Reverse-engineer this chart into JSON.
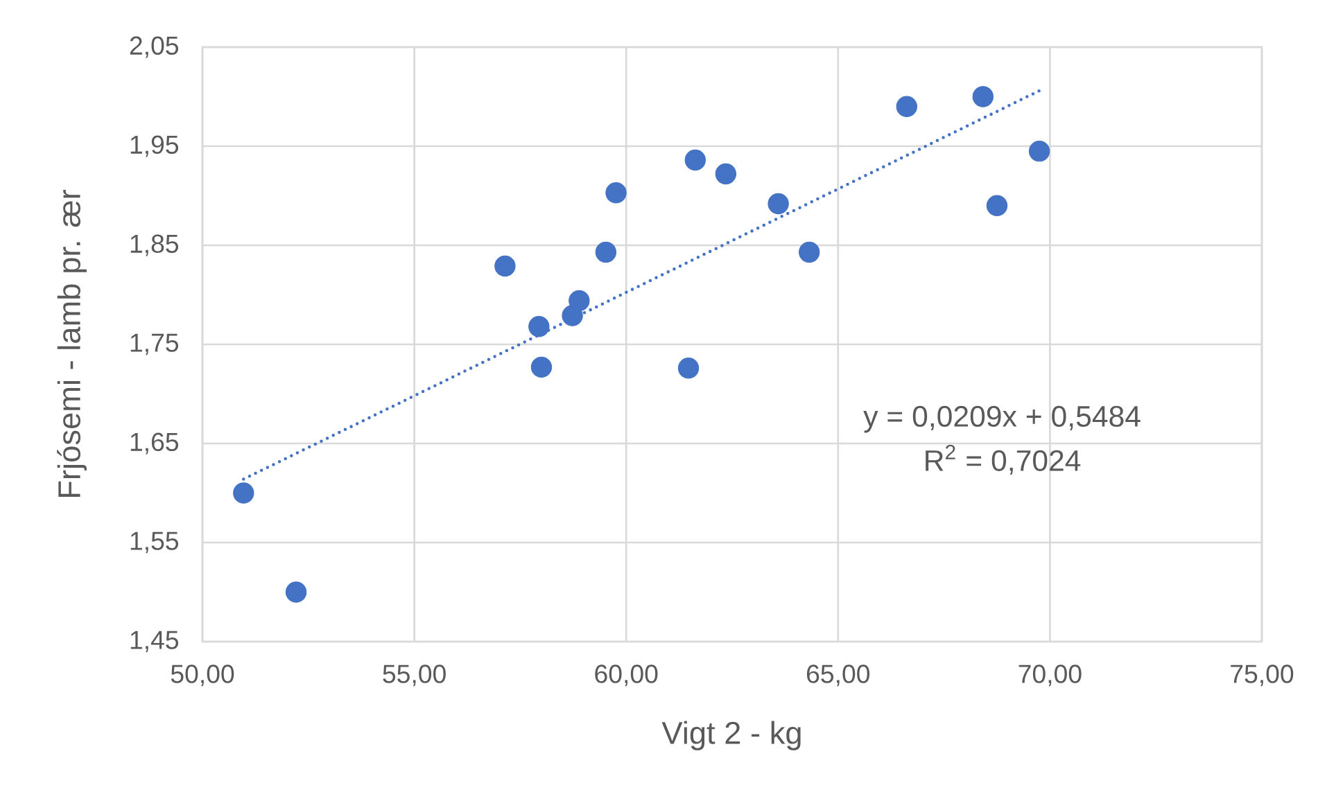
{
  "chart_data": {
    "type": "scatter",
    "xlabel": "Vigt 2 - kg",
    "ylabel": "Frjósemi - lamb pr. ær",
    "xlim": [
      50,
      75
    ],
    "ylim": [
      1.45,
      2.05
    ],
    "xticks": [
      {
        "value": 50,
        "label": "50,00"
      },
      {
        "value": 55,
        "label": "55,00"
      },
      {
        "value": 60,
        "label": "60,00"
      },
      {
        "value": 65,
        "label": "65,00"
      },
      {
        "value": 70,
        "label": "70,00"
      },
      {
        "value": 75,
        "label": "75,00"
      }
    ],
    "yticks": [
      {
        "value": 1.45,
        "label": "1,45"
      },
      {
        "value": 1.55,
        "label": "1,55"
      },
      {
        "value": 1.65,
        "label": "1,65"
      },
      {
        "value": 1.75,
        "label": "1,75"
      },
      {
        "value": 1.85,
        "label": "1,85"
      },
      {
        "value": 1.95,
        "label": "1,95"
      },
      {
        "value": 2.05,
        "label": "2,05"
      }
    ],
    "grid": true,
    "series": [
      {
        "color": "#4472c4",
        "marker": "circle",
        "x": [
          50.97,
          52.21,
          57.14,
          57.94,
          58.0,
          58.73,
          58.89,
          59.52,
          59.76,
          61.63,
          61.47,
          62.35,
          63.59,
          64.32,
          66.62,
          68.42,
          68.75,
          69.75
        ],
        "values": [
          1.6,
          1.5,
          1.829,
          1.768,
          1.727,
          1.779,
          1.794,
          1.843,
          1.903,
          1.936,
          1.726,
          1.922,
          1.892,
          1.843,
          1.99,
          2.0,
          1.89,
          1.945
        ]
      },
      {
        "type": "line",
        "color": "#4472c4",
        "marker": "none",
        "line_style": "dotted",
        "x": [
          50.97,
          69.75
        ],
        "values": [
          1.614,
          2.006
        ]
      }
    ],
    "annotations": [
      "y = 0,0209x + 0,5484",
      "R$^{2}$ = 0,7024"
    ]
  }
}
